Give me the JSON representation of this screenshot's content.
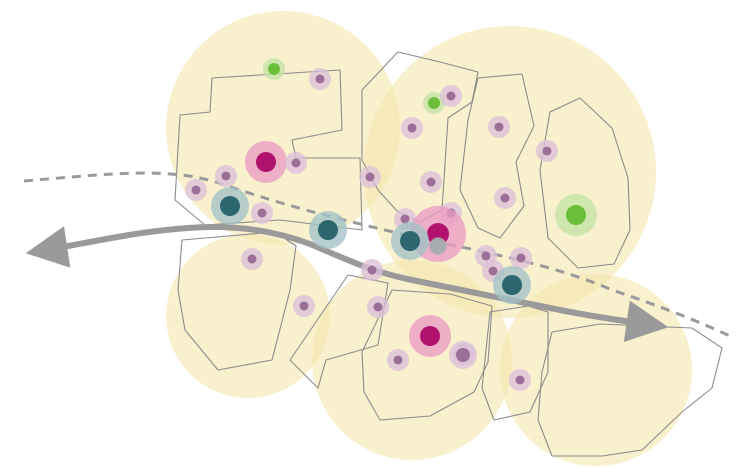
{
  "map": {
    "colors": {
      "catchment": "#f6e7ae",
      "catchment_opacity": 0.62,
      "outline": "#8c8c8c",
      "corridor": "#9a9a9a",
      "minor": "#9c6f98",
      "minor_halo": "#dbc0d8",
      "major": "#b0126d",
      "major_halo": "#e99bc4",
      "transit": "#2e6670",
      "transit_halo": "#a3c2c6",
      "green": "#6cbf3a",
      "green_halo": "#c3e3a6",
      "grey": "#a9acaf"
    },
    "catchments": [
      {
        "id": "nw"
      },
      {
        "id": "n"
      },
      {
        "id": "w"
      },
      {
        "id": "s"
      },
      {
        "id": "se"
      }
    ],
    "nodes": [
      {
        "type": "green"
      },
      {
        "type": "minor"
      },
      {
        "type": "green"
      },
      {
        "type": "minor"
      },
      {
        "type": "minor"
      },
      {
        "type": "minor"
      },
      {
        "type": "minor"
      },
      {
        "type": "major"
      },
      {
        "type": "minor"
      },
      {
        "type": "minor"
      },
      {
        "type": "minor"
      },
      {
        "type": "minor"
      },
      {
        "type": "minor"
      },
      {
        "type": "green"
      },
      {
        "type": "minor"
      },
      {
        "type": "transit"
      },
      {
        "type": "minor"
      },
      {
        "type": "transit"
      },
      {
        "type": "minor"
      },
      {
        "type": "minor"
      },
      {
        "type": "minor"
      },
      {
        "type": "major"
      },
      {
        "type": "transit"
      },
      {
        "type": "grey"
      },
      {
        "type": "minor"
      },
      {
        "type": "minor"
      },
      {
        "type": "minor"
      },
      {
        "type": "transit"
      },
      {
        "type": "minor"
      },
      {
        "type": "minor"
      },
      {
        "type": "minor"
      },
      {
        "type": "major"
      },
      {
        "type": "minor"
      },
      {
        "type": "minor"
      },
      {
        "type": "minor"
      },
      {
        "type": "minor"
      }
    ]
  }
}
